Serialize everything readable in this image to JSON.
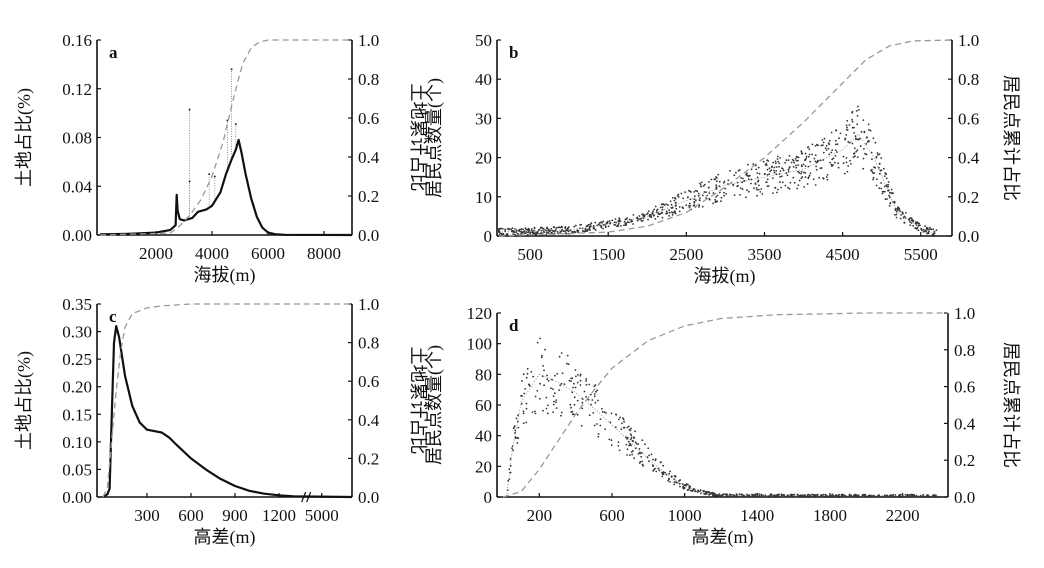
{
  "colors": {
    "main": "#111111",
    "cumulative": "#999999",
    "scatter": "#333333"
  },
  "chart_data": [
    {
      "type": "line",
      "panel_label": "a",
      "xlabel": "海拔(m)",
      "ylabel": "土地占比(%)",
      "y2label": "土地累计占比",
      "xlim": [
        0,
        9000
      ],
      "ylim": [
        0,
        0.16
      ],
      "y2lim": [
        0,
        1
      ],
      "xticks": [
        2000,
        4000,
        6000,
        8000
      ],
      "yticks": [
        "0.00",
        "0.04",
        "0.08",
        "0.12",
        "0.16"
      ],
      "y2ticks": [
        "0.0",
        "0.2",
        "0.4",
        "0.6",
        "0.8",
        "1.0"
      ],
      "density": {
        "x": [
          0,
          1000,
          2000,
          2500,
          2700,
          2740,
          2770,
          2850,
          3000,
          3300,
          3500,
          3800,
          4000,
          4300,
          4500,
          4700,
          4850,
          4950,
          5050,
          5200,
          5400,
          5600,
          5800,
          6000,
          6300,
          6600,
          9000
        ],
        "y": [
          0.0005,
          0.001,
          0.002,
          0.004,
          0.008,
          0.033,
          0.02,
          0.013,
          0.012,
          0.014,
          0.019,
          0.021,
          0.024,
          0.035,
          0.05,
          0.062,
          0.07,
          0.078,
          0.068,
          0.05,
          0.03,
          0.015,
          0.006,
          0.002,
          0.0005,
          0.0002,
          0
        ]
      },
      "spikes": [
        [
          3200,
          0.103
        ],
        [
          3200,
          0.044
        ],
        [
          4700,
          0.136
        ],
        [
          4550,
          0.094
        ],
        [
          3900,
          0.05
        ],
        [
          4850,
          0.091
        ],
        [
          4100,
          0.048
        ]
      ],
      "cumulative": {
        "x": [
          0,
          2500,
          2800,
          3200,
          3600,
          4000,
          4400,
          4800,
          5100,
          5400,
          5700,
          6000,
          9000
        ],
        "y": [
          0,
          0.01,
          0.04,
          0.1,
          0.18,
          0.3,
          0.48,
          0.72,
          0.88,
          0.96,
          0.99,
          1,
          1
        ]
      }
    },
    {
      "type": "scatter",
      "panel_label": "b",
      "xlabel": "海拔(m)",
      "ylabel": "居民点数量(个)",
      "y2label": "居民点累计占比",
      "xlim": [
        0,
        5900
      ],
      "ylim": [
        0,
        50
      ],
      "y2lim": [
        0,
        1
      ],
      "xticks": [
        500,
        1500,
        2500,
        3500,
        4500,
        5500
      ],
      "yticks": [
        "0",
        "10",
        "20",
        "30",
        "40",
        "50"
      ],
      "y2ticks": [
        "0.0",
        "0.2",
        "0.4",
        "0.6",
        "0.8",
        "1.0"
      ],
      "trend": {
        "x": [
          100,
          1000,
          1500,
          2000,
          2500,
          3000,
          3500,
          4000,
          4500,
          4700,
          4900,
          5200,
          5500,
          5700
        ],
        "y": [
          1,
          1.5,
          3,
          5,
          9,
          13,
          15,
          17,
          22,
          26,
          20,
          6,
          2,
          0.5
        ]
      },
      "cumulative": {
        "x": [
          100,
          1500,
          2000,
          2500,
          3000,
          3500,
          4000,
          4500,
          4800,
          5100,
          5400,
          5900
        ],
        "y": [
          0,
          0.02,
          0.05,
          0.12,
          0.25,
          0.4,
          0.58,
          0.78,
          0.9,
          0.97,
          0.995,
          1
        ]
      }
    },
    {
      "type": "line",
      "panel_label": "c",
      "xlabel": "高差(m)",
      "ylabel": "土地占比(%)",
      "y2label": "土地累计占比",
      "xlim": [
        0,
        9000
      ],
      "axis_break_at": 1300,
      "ylim": [
        0,
        0.35
      ],
      "y2lim": [
        0,
        1
      ],
      "xticks": [
        300,
        600,
        900,
        1200,
        5000
      ],
      "yticks": [
        "0.00",
        "0.05",
        "0.10",
        "0.15",
        "0.20",
        "0.25",
        "0.30",
        "0.35"
      ],
      "y2ticks": [
        "0.0",
        "0.2",
        "0.4",
        "0.6",
        "0.8",
        "1.0"
      ],
      "density": {
        "x": [
          0,
          30,
          45,
          60,
          75,
          90,
          110,
          150,
          200,
          250,
          300,
          400,
          450,
          500,
          600,
          700,
          800,
          900,
          1000,
          1100,
          1200,
          1300,
          9000
        ],
        "y": [
          0,
          0.005,
          0.015,
          0.15,
          0.28,
          0.31,
          0.29,
          0.22,
          0.165,
          0.135,
          0.122,
          0.117,
          0.108,
          0.095,
          0.07,
          0.05,
          0.033,
          0.02,
          0.011,
          0.006,
          0.003,
          0.001,
          0
        ]
      },
      "cumulative": {
        "x": [
          0,
          30,
          60,
          90,
          120,
          150,
          200,
          300,
          400,
          600,
          1300,
          9000
        ],
        "y": [
          0,
          0.05,
          0.3,
          0.55,
          0.75,
          0.88,
          0.95,
          0.98,
          0.99,
          1,
          1,
          1
        ]
      }
    },
    {
      "type": "scatter",
      "panel_label": "d",
      "xlabel": "高差(m)",
      "ylabel": "居民点数量(个)",
      "y2label": "居民点累计占比",
      "xlim": [
        0,
        2450
      ],
      "ylim": [
        0,
        120
      ],
      "y2lim": [
        0,
        1
      ],
      "xticks": [
        200,
        600,
        1000,
        1400,
        1800,
        2200
      ],
      "yticks": [
        "0",
        "20",
        "40",
        "60",
        "80",
        "100",
        "120"
      ],
      "y2ticks": [
        "0.0",
        "0.2",
        "0.4",
        "0.6",
        "0.8",
        "1.0"
      ],
      "trend": {
        "x": [
          20,
          50,
          100,
          200,
          300,
          400,
          500,
          600,
          700,
          800,
          900,
          1000,
          1100,
          1200,
          2400
        ],
        "y": [
          0,
          30,
          62,
          80,
          75,
          68,
          58,
          47,
          36,
          25,
          15,
          7,
          3,
          1,
          0.5
        ]
      },
      "cumulative": {
        "x": [
          0,
          100,
          200,
          300,
          400,
          500,
          600,
          800,
          1000,
          1200,
          1500,
          2000,
          2450
        ],
        "y": [
          0,
          0.03,
          0.15,
          0.3,
          0.45,
          0.58,
          0.7,
          0.85,
          0.93,
          0.97,
          0.99,
          1,
          1
        ]
      }
    }
  ]
}
